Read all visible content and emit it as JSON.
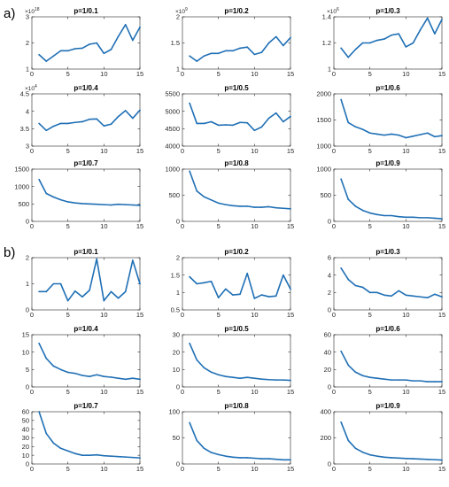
{
  "figure": {
    "panels": [
      {
        "id": "a",
        "label": "a)"
      },
      {
        "id": "b",
        "label": "b)"
      }
    ],
    "colors": {
      "line": "#1f6fb5",
      "axis": "#262626"
    }
  },
  "chart_data": [
    {
      "type": "line",
      "panel": "a",
      "title": "p=1/0.1",
      "x": [
        1,
        2,
        3,
        4,
        5,
        6,
        7,
        8,
        9,
        10,
        11,
        12,
        13,
        14,
        15
      ],
      "values": [
        1.55,
        1.3,
        1.5,
        1.7,
        1.7,
        1.78,
        1.8,
        1.95,
        2.0,
        1.6,
        1.75,
        2.25,
        2.7,
        2.1,
        2.6
      ],
      "ylim": [
        1,
        3
      ],
      "yticks": [
        "1",
        "2",
        "3"
      ],
      "multiplier": "×10",
      "multiplier_exp": "18",
      "xlim": [
        0,
        15
      ],
      "xticks": [
        "0",
        "5",
        "10",
        "15"
      ],
      "xlabel": "",
      "ylabel": ""
    },
    {
      "type": "line",
      "panel": "a",
      "title": "p=1/0.2",
      "x": [
        1,
        2,
        3,
        4,
        5,
        6,
        7,
        8,
        9,
        10,
        11,
        12,
        13,
        14,
        15
      ],
      "values": [
        1.25,
        1.15,
        1.25,
        1.3,
        1.3,
        1.35,
        1.35,
        1.4,
        1.42,
        1.28,
        1.32,
        1.5,
        1.62,
        1.45,
        1.6
      ],
      "ylim": [
        1,
        2
      ],
      "yticks": [
        "1",
        "1.5",
        "2"
      ],
      "multiplier": "×10",
      "multiplier_exp": "9",
      "xlim": [
        0,
        15
      ],
      "xticks": [
        "0",
        "5",
        "10",
        "15"
      ],
      "xlabel": "",
      "ylabel": ""
    },
    {
      "type": "line",
      "panel": "a",
      "title": "p=1/0.3",
      "x": [
        1,
        2,
        3,
        4,
        5,
        6,
        7,
        8,
        9,
        10,
        11,
        12,
        13,
        14,
        15
      ],
      "values": [
        1.16,
        1.09,
        1.15,
        1.2,
        1.2,
        1.22,
        1.23,
        1.26,
        1.27,
        1.17,
        1.2,
        1.3,
        1.39,
        1.27,
        1.38
      ],
      "ylim": [
        1,
        1.4
      ],
      "yticks": [
        "1",
        "1.2",
        "1.4"
      ],
      "multiplier": "×10",
      "multiplier_exp": "6",
      "xlim": [
        0,
        15
      ],
      "xticks": [
        "0",
        "5",
        "10",
        "15"
      ],
      "xlabel": "",
      "ylabel": ""
    },
    {
      "type": "line",
      "panel": "a",
      "title": "p=1/0.4",
      "x": [
        1,
        2,
        3,
        4,
        5,
        6,
        7,
        8,
        9,
        10,
        11,
        12,
        13,
        14,
        15
      ],
      "values": [
        3.65,
        3.45,
        3.57,
        3.65,
        3.65,
        3.68,
        3.7,
        3.77,
        3.78,
        3.58,
        3.63,
        3.85,
        4.02,
        3.8,
        4.03
      ],
      "ylim": [
        3,
        4.5
      ],
      "yticks": [
        "3",
        "3.5",
        "4",
        "4.5"
      ],
      "multiplier": "×10",
      "multiplier_exp": "4",
      "xlim": [
        0,
        15
      ],
      "xticks": [
        "0",
        "5",
        "10",
        "15"
      ],
      "xlabel": "",
      "ylabel": ""
    },
    {
      "type": "line",
      "panel": "a",
      "title": "p=1/0.5",
      "x": [
        1,
        2,
        3,
        4,
        5,
        6,
        7,
        8,
        9,
        10,
        11,
        12,
        13,
        14,
        15
      ],
      "values": [
        5230,
        4650,
        4650,
        4700,
        4600,
        4610,
        4600,
        4680,
        4670,
        4450,
        4550,
        4800,
        4950,
        4700,
        4850
      ],
      "ylim": [
        4000,
        5500
      ],
      "yticks": [
        "4000",
        "4500",
        "5000",
        "5500"
      ],
      "multiplier": "",
      "multiplier_exp": "",
      "xlim": [
        0,
        15
      ],
      "xticks": [
        "0",
        "5",
        "10",
        "15"
      ],
      "xlabel": "",
      "ylabel": ""
    },
    {
      "type": "line",
      "panel": "a",
      "title": "p=1/0.6",
      "x": [
        1,
        2,
        3,
        4,
        5,
        6,
        7,
        8,
        9,
        10,
        11,
        12,
        13,
        14,
        15
      ],
      "values": [
        1890,
        1450,
        1370,
        1320,
        1250,
        1230,
        1210,
        1230,
        1210,
        1160,
        1190,
        1220,
        1250,
        1180,
        1200
      ],
      "ylim": [
        1000,
        2000
      ],
      "yticks": [
        "1000",
        "1500",
        "2000"
      ],
      "multiplier": "",
      "multiplier_exp": "",
      "xlim": [
        0,
        15
      ],
      "xticks": [
        "0",
        "5",
        "10",
        "15"
      ],
      "xlabel": "",
      "ylabel": ""
    },
    {
      "type": "line",
      "panel": "a",
      "title": "p=1/0.7",
      "x": [
        1,
        2,
        3,
        4,
        5,
        6,
        7,
        8,
        9,
        10,
        11,
        12,
        13,
        14,
        15
      ],
      "values": [
        1200,
        800,
        700,
        620,
        560,
        530,
        510,
        500,
        490,
        480,
        470,
        490,
        480,
        470,
        460
      ],
      "ylim": [
        0,
        1500
      ],
      "yticks": [
        "0",
        "500",
        "1000",
        "1500"
      ],
      "multiplier": "",
      "multiplier_exp": "",
      "xlim": [
        0,
        15
      ],
      "xticks": [
        "0",
        "5",
        "10",
        "15"
      ],
      "xlabel": "",
      "ylabel": ""
    },
    {
      "type": "line",
      "panel": "a",
      "title": "p=1/0.8",
      "x": [
        1,
        2,
        3,
        4,
        5,
        6,
        7,
        8,
        9,
        10,
        11,
        12,
        13,
        14,
        15
      ],
      "values": [
        960,
        580,
        470,
        410,
        350,
        320,
        300,
        290,
        290,
        270,
        270,
        280,
        260,
        250,
        240
      ],
      "ylim": [
        0,
        1000
      ],
      "yticks": [
        "0",
        "500",
        "1000"
      ],
      "multiplier": "",
      "multiplier_exp": "",
      "xlim": [
        0,
        15
      ],
      "xticks": [
        "0",
        "5",
        "10",
        "15"
      ],
      "xlabel": "",
      "ylabel": ""
    },
    {
      "type": "line",
      "panel": "a",
      "title": "p=1/0.9",
      "x": [
        1,
        2,
        3,
        4,
        5,
        6,
        7,
        8,
        9,
        10,
        11,
        12,
        13,
        14,
        15
      ],
      "values": [
        810,
        420,
        290,
        210,
        160,
        130,
        110,
        110,
        90,
        80,
        80,
        70,
        70,
        60,
        50
      ],
      "ylim": [
        0,
        1000
      ],
      "yticks": [
        "0",
        "500",
        "1000"
      ],
      "multiplier": "",
      "multiplier_exp": "",
      "xlim": [
        0,
        15
      ],
      "xticks": [
        "0",
        "5",
        "10",
        "15"
      ],
      "xlabel": "",
      "ylabel": ""
    },
    {
      "type": "line",
      "panel": "b",
      "title": "p=1/0.1",
      "x": [
        1,
        2,
        3,
        4,
        5,
        6,
        7,
        8,
        9,
        10,
        11,
        12,
        13,
        14,
        15
      ],
      "values": [
        0.7,
        0.7,
        1.0,
        1.0,
        0.35,
        0.72,
        0.5,
        0.75,
        1.95,
        0.35,
        0.7,
        0.45,
        0.7,
        1.9,
        1.0
      ],
      "ylim": [
        0,
        2
      ],
      "yticks": [
        "0",
        "1",
        "2"
      ],
      "multiplier": "",
      "multiplier_exp": "",
      "xlim": [
        0,
        15
      ],
      "xticks": [
        "0",
        "5",
        "10",
        "15"
      ],
      "xlabel": "",
      "ylabel": ""
    },
    {
      "type": "line",
      "panel": "b",
      "title": "p=1/0.2",
      "x": [
        1,
        2,
        3,
        4,
        5,
        6,
        7,
        8,
        9,
        10,
        11,
        12,
        13,
        14,
        15
      ],
      "values": [
        1.45,
        1.25,
        1.28,
        1.32,
        0.85,
        1.1,
        0.93,
        0.95,
        1.55,
        0.83,
        0.93,
        0.88,
        0.9,
        1.5,
        1.1
      ],
      "ylim": [
        0.5,
        2
      ],
      "yticks": [
        "0.5",
        "1",
        "1.5",
        "2"
      ],
      "multiplier": "",
      "multiplier_exp": "",
      "xlim": [
        0,
        15
      ],
      "xticks": [
        "0",
        "5",
        "10",
        "15"
      ],
      "xlabel": "",
      "ylabel": ""
    },
    {
      "type": "line",
      "panel": "b",
      "title": "p=1/0.3",
      "x": [
        1,
        2,
        3,
        4,
        5,
        6,
        7,
        8,
        9,
        10,
        11,
        12,
        13,
        14,
        15
      ],
      "values": [
        4.8,
        3.5,
        2.8,
        2.6,
        2.0,
        2.0,
        1.7,
        1.6,
        2.2,
        1.7,
        1.6,
        1.5,
        1.4,
        1.8,
        1.5
      ],
      "ylim": [
        0,
        6
      ],
      "yticks": [
        "0",
        "2",
        "4",
        "6"
      ],
      "multiplier": "",
      "multiplier_exp": "",
      "xlim": [
        0,
        15
      ],
      "xticks": [
        "0",
        "5",
        "10",
        "15"
      ],
      "xlabel": "",
      "ylabel": ""
    },
    {
      "type": "line",
      "panel": "b",
      "title": "p=1/0.4",
      "x": [
        1,
        2,
        3,
        4,
        5,
        6,
        7,
        8,
        9,
        10,
        11,
        12,
        13,
        14,
        15
      ],
      "values": [
        12.5,
        8.2,
        6.0,
        5.0,
        4.2,
        3.9,
        3.3,
        3.0,
        3.5,
        3.0,
        2.8,
        2.5,
        2.2,
        2.5,
        2.2
      ],
      "ylim": [
        0,
        15
      ],
      "yticks": [
        "0",
        "5",
        "10",
        "15"
      ],
      "multiplier": "",
      "multiplier_exp": "",
      "xlim": [
        0,
        15
      ],
      "xticks": [
        "0",
        "5",
        "10",
        "15"
      ],
      "xlabel": "",
      "ylabel": ""
    },
    {
      "type": "line",
      "panel": "b",
      "title": "p=1/0.5",
      "x": [
        1,
        2,
        3,
        4,
        5,
        6,
        7,
        8,
        9,
        10,
        11,
        12,
        13,
        14,
        15
      ],
      "values": [
        25,
        15.5,
        11,
        8.5,
        7,
        6,
        5.5,
        5,
        5.5,
        5,
        4.5,
        4.2,
        4,
        4,
        3.8
      ],
      "ylim": [
        0,
        30
      ],
      "yticks": [
        "0",
        "10",
        "20",
        "30"
      ],
      "multiplier": "",
      "multiplier_exp": "",
      "xlim": [
        0,
        15
      ],
      "xticks": [
        "0",
        "5",
        "10",
        "15"
      ],
      "xlabel": "",
      "ylabel": ""
    },
    {
      "type": "line",
      "panel": "b",
      "title": "p=1/0.6",
      "x": [
        1,
        2,
        3,
        4,
        5,
        6,
        7,
        8,
        9,
        10,
        11,
        12,
        13,
        14,
        15
      ],
      "values": [
        41,
        25,
        17,
        13,
        11,
        10,
        9,
        8,
        8,
        8,
        7,
        7,
        6,
        6,
        6
      ],
      "ylim": [
        0,
        60
      ],
      "yticks": [
        "0",
        "20",
        "40",
        "60"
      ],
      "multiplier": "",
      "multiplier_exp": "",
      "xlim": [
        0,
        15
      ],
      "xticks": [
        "0",
        "5",
        "10",
        "15"
      ],
      "xlabel": "",
      "ylabel": ""
    },
    {
      "type": "line",
      "panel": "b",
      "title": "p=1/0.7",
      "x": [
        1,
        2,
        3,
        4,
        5,
        6,
        7,
        8,
        9,
        10,
        11,
        12,
        13,
        14,
        15
      ],
      "values": [
        60,
        35,
        24,
        18,
        15,
        12,
        10,
        10,
        10.5,
        9.5,
        9,
        8.5,
        8,
        7.5,
        7
      ],
      "ylim": [
        0,
        60
      ],
      "yticks": [
        "0",
        "10",
        "20",
        "30",
        "40",
        "50",
        "60"
      ],
      "multiplier": "",
      "multiplier_exp": "",
      "xlim": [
        0,
        15
      ],
      "xticks": [
        "0",
        "5",
        "10",
        "15"
      ],
      "xlabel": "",
      "ylabel": ""
    },
    {
      "type": "line",
      "panel": "b",
      "title": "p=1/0.8",
      "x": [
        1,
        2,
        3,
        4,
        5,
        6,
        7,
        8,
        9,
        10,
        11,
        12,
        13,
        14,
        15
      ],
      "values": [
        79,
        45,
        30,
        22,
        18,
        15,
        13,
        12,
        12,
        11,
        10,
        10,
        9,
        8,
        8
      ],
      "ylim": [
        0,
        100
      ],
      "yticks": [
        "0",
        "50",
        "100"
      ],
      "multiplier": "",
      "multiplier_exp": "",
      "xlim": [
        0,
        15
      ],
      "xticks": [
        "0",
        "5",
        "10",
        "15"
      ],
      "xlabel": "",
      "ylabel": ""
    },
    {
      "type": "line",
      "panel": "b",
      "title": "p=1/0.9",
      "x": [
        1,
        2,
        3,
        4,
        5,
        6,
        7,
        8,
        9,
        10,
        11,
        12,
        13,
        14,
        15
      ],
      "values": [
        320,
        180,
        120,
        90,
        70,
        60,
        52,
        48,
        45,
        42,
        40,
        38,
        35,
        33,
        30
      ],
      "ylim": [
        0,
        400
      ],
      "yticks": [
        "0",
        "200",
        "400"
      ],
      "multiplier": "",
      "multiplier_exp": "",
      "xlim": [
        0,
        15
      ],
      "xticks": [
        "0",
        "5",
        "10",
        "15"
      ],
      "xlabel": "",
      "ylabel": ""
    }
  ]
}
